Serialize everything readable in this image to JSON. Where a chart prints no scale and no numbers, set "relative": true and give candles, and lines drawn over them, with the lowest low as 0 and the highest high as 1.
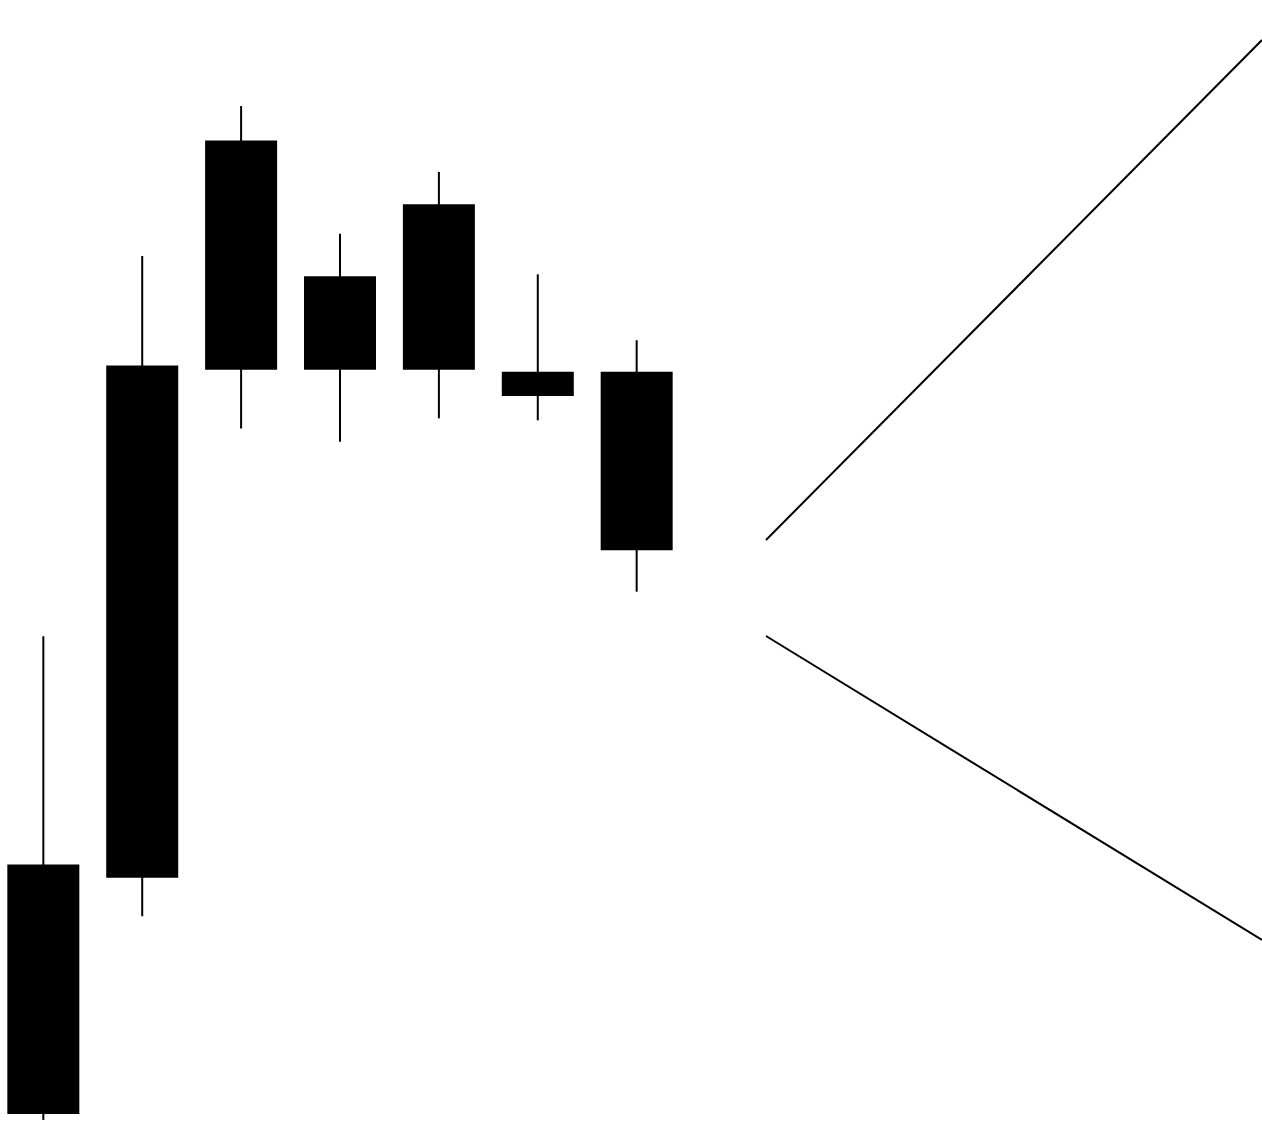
{
  "chart_data": {
    "type": "candlestick",
    "relative": true,
    "color": "#000000",
    "categories": [
      null,
      null,
      null,
      null,
      null,
      null,
      null
    ],
    "ohlc": [
      [
        0.252,
        0.477,
        0,
        0.006
      ],
      [
        0.744,
        0.852,
        0.201,
        0.239
      ],
      [
        0.966,
        1,
        0.682,
        0.74
      ],
      [
        0.832,
        0.874,
        0.669,
        0.74
      ],
      [
        0.903,
        0.935,
        0.692,
        0.74
      ],
      [
        0.738,
        0.834,
        0.69,
        0.714
      ],
      [
        0.738,
        0.769,
        0.521,
        0.562
      ]
    ]
  }
}
